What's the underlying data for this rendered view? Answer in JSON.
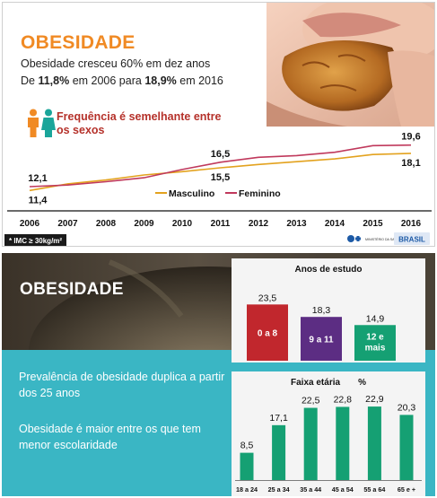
{
  "slide1": {
    "title": "OBESIDADE",
    "line1": "Obesidade cresceu 60% em dez anos",
    "line2_prefix": "De ",
    "line2_v1": "11,8%",
    "line2_mid": " em 2006 para ",
    "line2_v2": "18,9%",
    "line2_suffix": " em 2016",
    "frequency_text": "Frequência é semelhante entre os sexos",
    "footnote": "* IMC ≥ 30kg/m²",
    "logo_text": "MINISTÉRIO DA SAÚDE",
    "logo_brand": "BRASIL"
  },
  "slide2": {
    "title": "OBESIDADE",
    "text1": "Prevalência de obesidade duplica a partir dos 25 anos",
    "text2": "Obesidade é maior entre os que tem menor escolaridade"
  },
  "colors": {
    "orange": "#f08a24",
    "red": "#b5312a",
    "masculino": "#e3a21e",
    "feminino": "#c0395c",
    "teal": "#3ab6c4",
    "green": "#15a073",
    "edu_0a8": "#c1272d",
    "edu_9a11": "#5c2d83",
    "edu_12": "#15a073"
  },
  "chart_data": [
    {
      "type": "line",
      "x": [
        "2006",
        "2007",
        "2008",
        "2009",
        "2010",
        "2011",
        "2012",
        "2013",
        "2014",
        "2015",
        "2016"
      ],
      "series": [
        {
          "name": "Masculino",
          "values": [
            11.4,
            12.6,
            13.3,
            14.2,
            14.8,
            15.5,
            16.1,
            16.6,
            17.1,
            17.9,
            18.1
          ]
        },
        {
          "name": "Feminino",
          "values": [
            12.1,
            12.4,
            13.0,
            13.7,
            15.2,
            16.5,
            17.4,
            17.7,
            18.3,
            19.5,
            19.6
          ]
        }
      ],
      "data_labels": [
        {
          "series": "Feminino",
          "x": "2006",
          "value": "12,1"
        },
        {
          "series": "Masculino",
          "x": "2006",
          "value": "11,4"
        },
        {
          "series": "Feminino",
          "x": "2011",
          "value": "16,5"
        },
        {
          "series": "Masculino",
          "x": "2011",
          "value": "15,5"
        },
        {
          "series": "Feminino",
          "x": "2016",
          "value": "19,6"
        },
        {
          "series": "Masculino",
          "x": "2016",
          "value": "18,1"
        }
      ],
      "legend": [
        "Masculino",
        "Feminino"
      ],
      "legend_position": "bottom-center",
      "ylim": [
        10,
        21
      ]
    },
    {
      "type": "bar",
      "title": "Anos de estudo",
      "categories": [
        "0 a 8",
        "9 a 11",
        "12 e mais"
      ],
      "values": [
        23.5,
        18.3,
        14.9
      ],
      "value_labels": [
        "23,5",
        "18,3",
        "14,9"
      ],
      "ylim": [
        0,
        30
      ]
    },
    {
      "type": "bar",
      "title": "Faixa etária",
      "unit": "%",
      "categories": [
        "18 a 24",
        "25 a 34",
        "35 a 44",
        "45 a 54",
        "55 a 64",
        "65 e +"
      ],
      "values": [
        8.5,
        17.1,
        22.5,
        22.8,
        22.9,
        20.3
      ],
      "value_labels": [
        "8,5",
        "17,1",
        "22,5",
        "22,8",
        "22,9",
        "20,3"
      ],
      "ylim": [
        0,
        26
      ]
    }
  ]
}
